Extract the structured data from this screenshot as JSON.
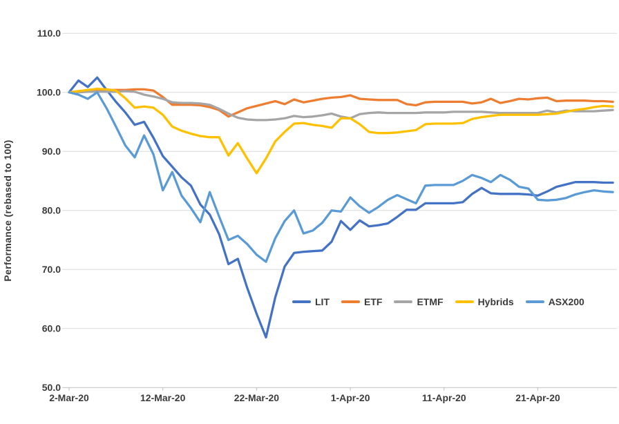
{
  "chart_data": {
    "type": "line",
    "title": "",
    "xlabel": "",
    "ylabel": "Performance (rebased to 100)",
    "ylim": [
      50,
      110
    ],
    "grid": "horizontal",
    "legend_position": "inside-bottom-center-right",
    "y_tick_labels": [
      "110.0",
      "100.0",
      "90.0",
      "80.0",
      "70.0",
      "60.0",
      "50.0"
    ],
    "y_tick_values": [
      110,
      100,
      90,
      80,
      70,
      60,
      50
    ],
    "x_tick_labels": [
      "2-Mar-20",
      "12-Mar-20",
      "22-Mar-20",
      "1-Apr-20",
      "11-Apr-20",
      "21-Apr-20"
    ],
    "x_tick_indices": [
      0,
      10,
      20,
      30,
      40,
      50
    ],
    "x": [
      "2-Mar-20",
      "3-Mar-20",
      "4-Mar-20",
      "5-Mar-20",
      "6-Mar-20",
      "7-Mar-20",
      "8-Mar-20",
      "9-Mar-20",
      "10-Mar-20",
      "11-Mar-20",
      "12-Mar-20",
      "13-Mar-20",
      "14-Mar-20",
      "15-Mar-20",
      "16-Mar-20",
      "17-Mar-20",
      "18-Mar-20",
      "19-Mar-20",
      "20-Mar-20",
      "21-Mar-20",
      "22-Mar-20",
      "23-Mar-20",
      "24-Mar-20",
      "25-Mar-20",
      "26-Mar-20",
      "27-Mar-20",
      "28-Mar-20",
      "29-Mar-20",
      "30-Mar-20",
      "31-Mar-20",
      "1-Apr-20",
      "2-Apr-20",
      "3-Apr-20",
      "4-Apr-20",
      "5-Apr-20",
      "6-Apr-20",
      "7-Apr-20",
      "8-Apr-20",
      "9-Apr-20",
      "10-Apr-20",
      "11-Apr-20",
      "12-Apr-20",
      "13-Apr-20",
      "14-Apr-20",
      "15-Apr-20",
      "16-Apr-20",
      "17-Apr-20",
      "18-Apr-20",
      "19-Apr-20",
      "20-Apr-20",
      "21-Apr-20",
      "22-Apr-20",
      "23-Apr-20",
      "24-Apr-20",
      "25-Apr-20",
      "26-Apr-20",
      "27-Apr-20",
      "28-Apr-20",
      "29-Apr-20"
    ],
    "series": [
      {
        "name": "LIT",
        "color": "#4472C4",
        "values": [
          100.0,
          102.0,
          100.9,
          102.5,
          100.4,
          98.4,
          96.6,
          94.5,
          95.0,
          92.3,
          89.2,
          87.4,
          85.6,
          84.2,
          81.0,
          79.3,
          76.0,
          70.9,
          71.8,
          66.9,
          62.5,
          58.5,
          65.3,
          70.5,
          72.8,
          73.0,
          73.1,
          73.2,
          74.7,
          78.2,
          76.7,
          78.3,
          77.3,
          77.5,
          77.8,
          78.9,
          80.1,
          80.1,
          81.2,
          81.2,
          81.2,
          81.2,
          81.4,
          82.8,
          83.8,
          82.9,
          82.8,
          82.8,
          82.8,
          82.7,
          82.5,
          83.2,
          84.0,
          84.4,
          84.8,
          84.8,
          84.8,
          84.7,
          84.7
        ]
      },
      {
        "name": "ETF",
        "color": "#ED7D31",
        "values": [
          100.0,
          100.2,
          100.3,
          100.4,
          100.4,
          100.4,
          100.4,
          100.5,
          100.5,
          100.3,
          99.2,
          97.9,
          97.9,
          97.9,
          97.8,
          97.5,
          97.0,
          95.9,
          96.6,
          97.3,
          97.7,
          98.1,
          98.5,
          98.0,
          98.8,
          98.3,
          98.6,
          98.9,
          99.1,
          99.2,
          99.5,
          98.9,
          98.8,
          98.7,
          98.7,
          98.7,
          98.0,
          97.8,
          98.3,
          98.4,
          98.4,
          98.4,
          98.4,
          98.1,
          98.3,
          98.9,
          98.2,
          98.5,
          98.9,
          98.8,
          99.0,
          99.1,
          98.5,
          98.6,
          98.6,
          98.6,
          98.5,
          98.5,
          98.4
        ]
      },
      {
        "name": "ETMF",
        "color": "#A5A5A5",
        "values": [
          100.0,
          100.0,
          100.1,
          100.1,
          100.1,
          100.1,
          100.2,
          100.1,
          99.6,
          99.3,
          98.9,
          98.3,
          98.2,
          98.2,
          98.1,
          97.9,
          97.2,
          96.4,
          95.7,
          95.4,
          95.3,
          95.3,
          95.4,
          95.6,
          96.0,
          95.8,
          95.9,
          96.1,
          96.4,
          95.9,
          95.6,
          96.3,
          96.5,
          96.6,
          96.5,
          96.5,
          96.5,
          96.5,
          96.6,
          96.6,
          96.6,
          96.7,
          96.7,
          96.7,
          96.7,
          96.6,
          96.5,
          96.5,
          96.5,
          96.5,
          96.5,
          96.9,
          96.6,
          96.9,
          96.8,
          96.8,
          96.8,
          96.9,
          97.0
        ]
      },
      {
        "name": "Hybrids",
        "color": "#FFC000",
        "values": [
          100.0,
          100.2,
          100.4,
          100.6,
          100.5,
          100.3,
          99.0,
          97.4,
          97.6,
          97.4,
          96.2,
          94.2,
          93.5,
          93.0,
          92.6,
          92.4,
          92.4,
          89.3,
          91.4,
          88.8,
          86.3,
          88.8,
          91.7,
          93.3,
          94.7,
          94.8,
          94.5,
          94.3,
          94.0,
          95.6,
          95.6,
          94.6,
          93.3,
          93.1,
          93.1,
          93.2,
          93.4,
          93.6,
          94.6,
          94.7,
          94.7,
          94.7,
          94.8,
          95.5,
          95.8,
          96.0,
          96.2,
          96.2,
          96.2,
          96.2,
          96.2,
          96.3,
          96.4,
          96.7,
          97.0,
          97.2,
          97.5,
          97.7,
          97.6
        ]
      },
      {
        "name": "ASX200",
        "color": "#5B9BD5",
        "values": [
          100.0,
          99.6,
          98.9,
          100.0,
          97.3,
          94.2,
          91.0,
          89.0,
          92.7,
          89.5,
          83.4,
          86.5,
          82.5,
          80.4,
          78.0,
          83.1,
          79.0,
          75.0,
          75.7,
          74.3,
          72.5,
          71.3,
          75.3,
          78.2,
          80.0,
          76.1,
          76.6,
          77.9,
          80.0,
          79.8,
          82.2,
          80.7,
          79.6,
          80.6,
          81.8,
          82.6,
          81.9,
          81.2,
          84.2,
          84.3,
          84.3,
          84.3,
          85.0,
          86.0,
          85.5,
          84.8,
          86.0,
          85.2,
          84.0,
          83.7,
          81.8,
          81.7,
          81.8,
          82.1,
          82.7,
          83.1,
          83.4,
          83.2,
          83.1
        ]
      }
    ]
  },
  "styles": {
    "background": "#FFFFFF",
    "grid_color": "#D9D9D9",
    "axis_color": "#BFBFBF",
    "text_color": "#3B3B3B"
  }
}
